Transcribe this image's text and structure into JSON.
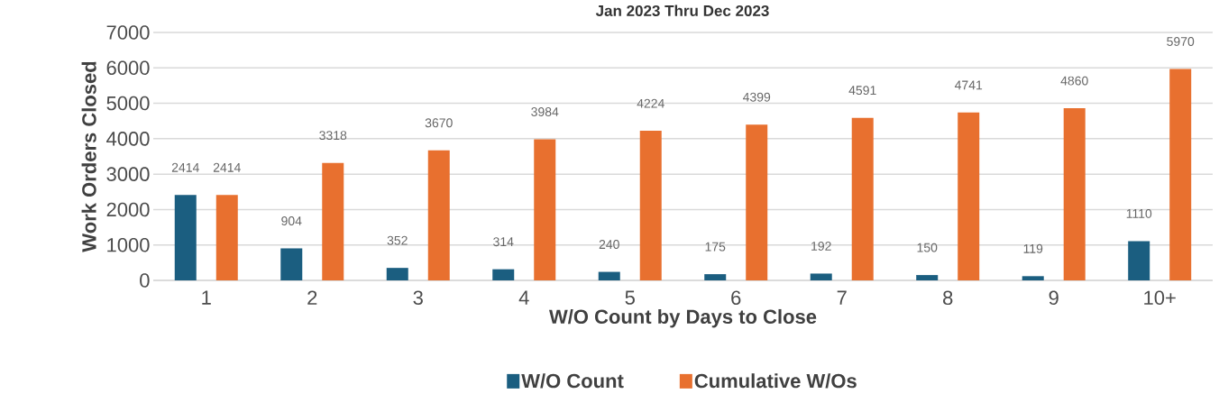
{
  "chart_data": {
    "type": "bar",
    "title": "Jan 2023 Thru Dec 2023",
    "xlabel": "W/O Count by Days to Close",
    "ylabel": "Work Orders Closed",
    "categories": [
      "1",
      "2",
      "3",
      "4",
      "5",
      "6",
      "7",
      "8",
      "9",
      "10+"
    ],
    "series": [
      {
        "name": "W/O Count",
        "color": "#1b5e80",
        "values": [
          2414,
          904,
          352,
          314,
          240,
          175,
          192,
          150,
          119,
          1110
        ]
      },
      {
        "name": "Cumulative W/Os",
        "color": "#e8702f",
        "values": [
          2414,
          3318,
          3670,
          3984,
          4224,
          4399,
          4591,
          4741,
          4860,
          5970
        ]
      }
    ],
    "ylim": [
      0,
      7000
    ],
    "yticks": [
      0,
      1000,
      2000,
      3000,
      4000,
      5000,
      6000,
      7000
    ],
    "grid": "y",
    "legend": "bottom",
    "data_labels": true
  }
}
